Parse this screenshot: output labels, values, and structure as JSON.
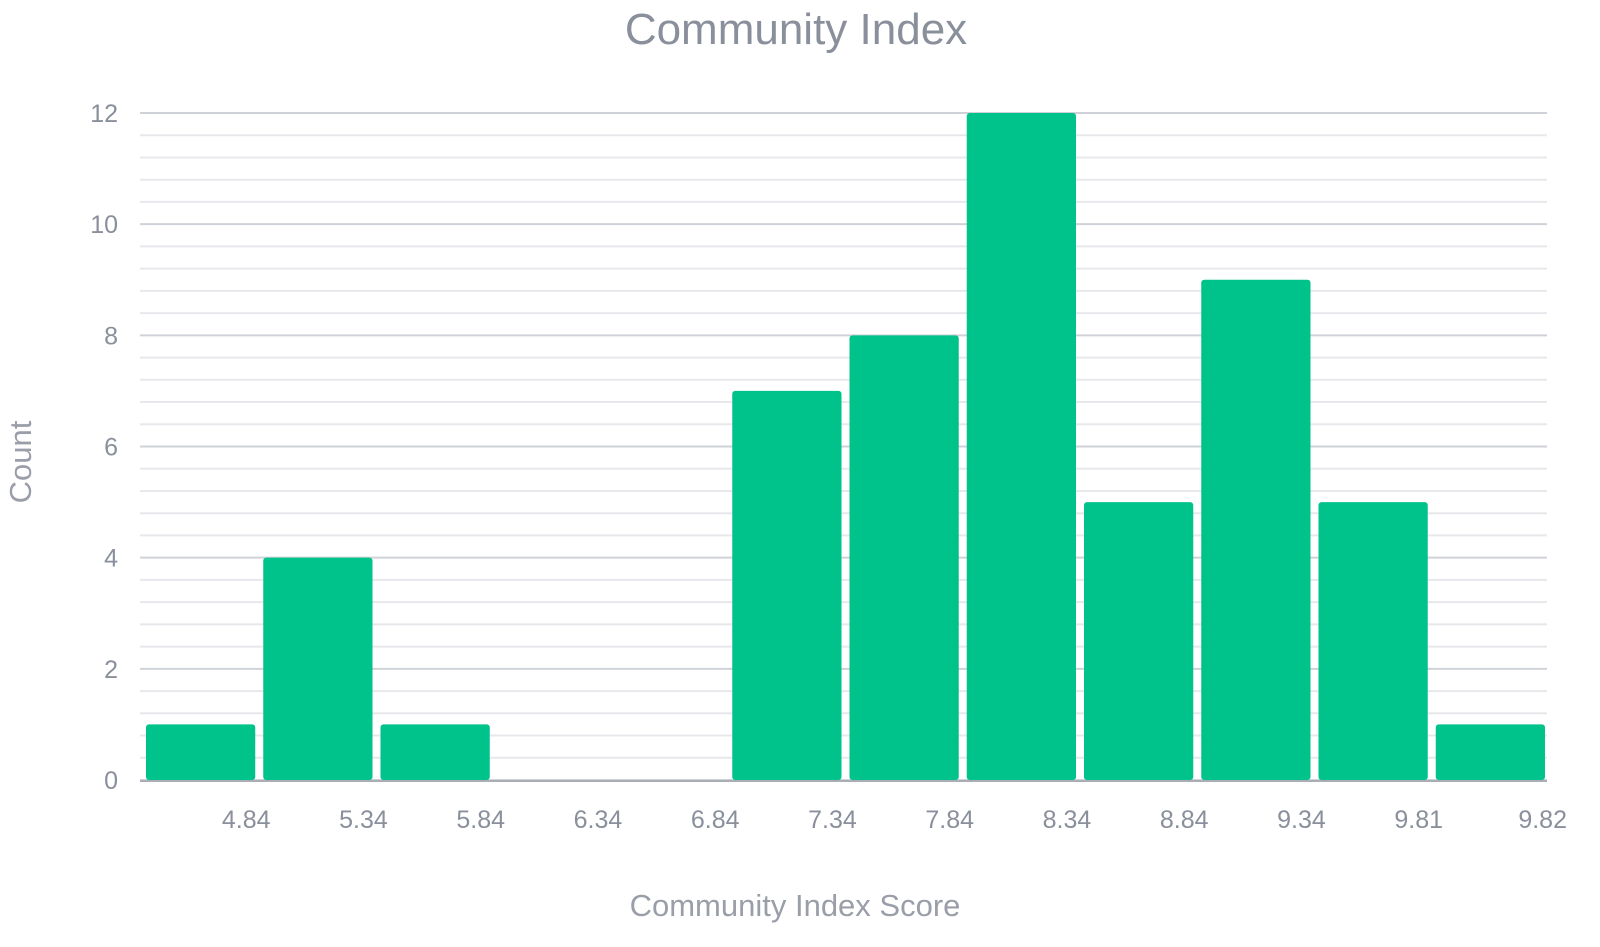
{
  "chart_data": {
    "type": "bar",
    "title": "Community Index",
    "xlabel": "Community Index Score",
    "ylabel": "Count",
    "x_tick_labels": [
      "4.84",
      "5.34",
      "5.84",
      "6.34",
      "6.84",
      "7.34",
      "7.84",
      "8.34",
      "8.84",
      "9.34",
      "9.81",
      "9.82"
    ],
    "y_ticks": [
      0,
      2,
      4,
      6,
      8,
      10,
      12
    ],
    "ylim": [
      0,
      12
    ],
    "values": [
      1,
      4,
      1,
      0,
      0,
      7,
      8,
      12,
      5,
      9,
      5,
      1
    ],
    "grid": true,
    "bar_color": "#00c28b"
  }
}
